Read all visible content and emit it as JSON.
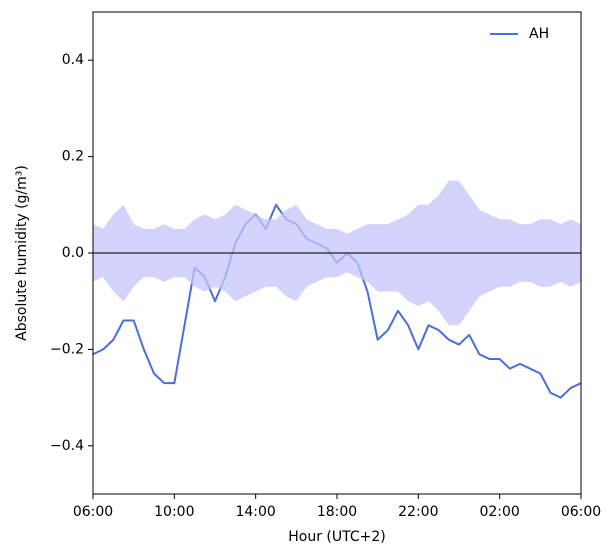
{
  "chart_data": {
    "type": "line",
    "xlabel": "Hour (UTC+2)",
    "ylabel": "Absolute humidity (g/m³)",
    "x": [
      0,
      0.5,
      1,
      1.5,
      2,
      2.5,
      3,
      3.5,
      4,
      4.5,
      5,
      5.5,
      6,
      6.5,
      7,
      7.5,
      8,
      8.5,
      9,
      9.5,
      10,
      10.5,
      11,
      11.5,
      12,
      12.5,
      13,
      13.5,
      14,
      14.5,
      15,
      15.5,
      16,
      16.5,
      17,
      17.5,
      18,
      18.5,
      19,
      19.5,
      20,
      20.5,
      21,
      21.5,
      22,
      22.5,
      23,
      23.5,
      24
    ],
    "series": [
      {
        "name": "AH",
        "color": "#4a6fdc",
        "values": [
          -0.21,
          -0.2,
          -0.18,
          -0.14,
          -0.14,
          -0.2,
          -0.25,
          -0.27,
          -0.27,
          -0.15,
          -0.03,
          -0.05,
          -0.1,
          -0.05,
          0.02,
          0.06,
          0.08,
          0.05,
          0.1,
          0.07,
          0.06,
          0.03,
          0.02,
          0.01,
          -0.02,
          0,
          -0.02,
          -0.08,
          -0.18,
          -0.16,
          -0.12,
          -0.15,
          -0.2,
          -0.15,
          -0.16,
          -0.18,
          -0.19,
          -0.17,
          -0.21,
          -0.22,
          -0.22,
          -0.24,
          -0.23,
          -0.24,
          -0.25,
          -0.29,
          -0.3,
          -0.28,
          -0.27
        ]
      }
    ],
    "band": {
      "color": "#c4c4fb",
      "upper": [
        0.06,
        0.05,
        0.08,
        0.1,
        0.06,
        0.05,
        0.05,
        0.06,
        0.05,
        0.05,
        0.07,
        0.08,
        0.07,
        0.08,
        0.1,
        0.09,
        0.08,
        0.07,
        0.07,
        0.09,
        0.1,
        0.07,
        0.06,
        0.05,
        0.05,
        0.04,
        0.05,
        0.06,
        0.06,
        0.06,
        0.07,
        0.08,
        0.1,
        0.1,
        0.12,
        0.15,
        0.15,
        0.12,
        0.09,
        0.08,
        0.07,
        0.07,
        0.06,
        0.06,
        0.07,
        0.07,
        0.06,
        0.07,
        0.06
      ],
      "lower": [
        -0.06,
        -0.05,
        -0.08,
        -0.1,
        -0.07,
        -0.05,
        -0.05,
        -0.06,
        -0.05,
        -0.05,
        -0.07,
        -0.08,
        -0.07,
        -0.08,
        -0.1,
        -0.09,
        -0.08,
        -0.07,
        -0.07,
        -0.09,
        -0.1,
        -0.07,
        -0.06,
        -0.05,
        -0.05,
        -0.04,
        -0.05,
        -0.06,
        -0.08,
        -0.08,
        -0.08,
        -0.1,
        -0.11,
        -0.1,
        -0.12,
        -0.15,
        -0.15,
        -0.12,
        -0.09,
        -0.08,
        -0.07,
        -0.07,
        -0.06,
        -0.06,
        -0.07,
        -0.07,
        -0.06,
        -0.07,
        -0.06
      ]
    },
    "reference_line": 0,
    "xlim": [
      0,
      24
    ],
    "xticks": [
      {
        "value": 0,
        "label": "06:00"
      },
      {
        "value": 4,
        "label": "10:00"
      },
      {
        "value": 8,
        "label": "14:00"
      },
      {
        "value": 12,
        "label": "18:00"
      },
      {
        "value": 16,
        "label": "22:00"
      },
      {
        "value": 20,
        "label": "02:00"
      },
      {
        "value": 24,
        "label": "06:00"
      }
    ],
    "ylim": [
      -0.5,
      0.5
    ],
    "yticks": [
      {
        "value": -0.4,
        "label": "−0.4"
      },
      {
        "value": -0.2,
        "label": "−0.2"
      },
      {
        "value": 0,
        "label": "0.0"
      },
      {
        "value": 0.2,
        "label": "0.2"
      },
      {
        "value": 0.4,
        "label": "0.4"
      }
    ],
    "legend": "upper right"
  }
}
